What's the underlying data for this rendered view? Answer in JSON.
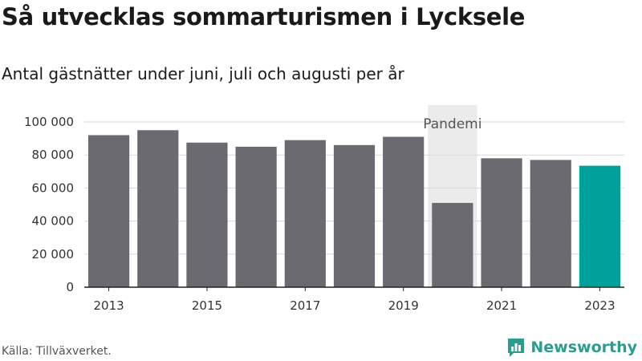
{
  "title": "Så utvecklas sommarturismen i Lycksele",
  "subtitle": "Antal gästnätter under juni, juli och augusti per år",
  "source": "Källa: Tillväxverket.",
  "brand": {
    "name": "Newsworthy",
    "icon": "newsworthy-logo-icon"
  },
  "colors": {
    "bar": "#6b6a70",
    "highlight": "#00a19a",
    "shade": "#ebebeb",
    "grid": "#d9d9d9",
    "axis": "#222222",
    "brand": "#2a9d8f"
  },
  "chart_data": {
    "type": "bar",
    "title": "Så utvecklas sommarturismen i Lycksele",
    "subtitle": "Antal gästnätter under juni, juli och augusti per år",
    "categories": [
      "2013",
      "2014",
      "2015",
      "2016",
      "2017",
      "2018",
      "2019",
      "2020",
      "2021",
      "2022",
      "2023"
    ],
    "values": [
      92000,
      95000,
      87500,
      85000,
      89000,
      86000,
      91000,
      51000,
      78000,
      77000,
      73500
    ],
    "highlight_category": "2023",
    "ylim": [
      0,
      100000
    ],
    "yticks": [
      0,
      20000,
      40000,
      60000,
      80000,
      100000
    ],
    "ytick_labels": [
      "0",
      "20 000",
      "40 000",
      "60 000",
      "80 000",
      "100 000"
    ],
    "xtick_labels": [
      "2013",
      "2015",
      "2017",
      "2019",
      "2021",
      "2023"
    ],
    "xlabel": "",
    "ylabel": "",
    "grid": true,
    "annotations": [
      {
        "label": "Pandemi",
        "x_range": [
          "2020",
          "2021"
        ]
      }
    ]
  }
}
